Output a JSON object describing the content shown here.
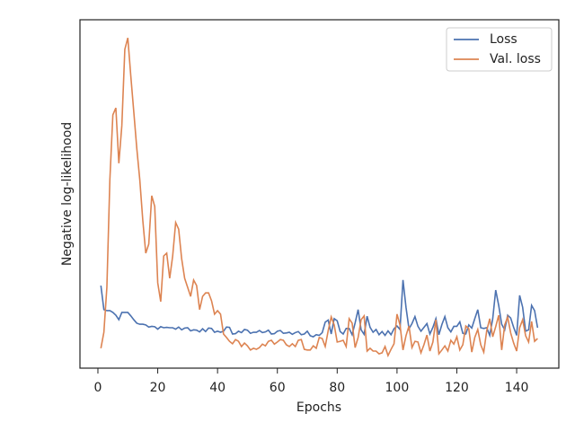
{
  "chart_data": {
    "type": "line",
    "xlabel": "Epochs",
    "ylabel": "Negative log-likelihood",
    "x": [
      1,
      2,
      3,
      4,
      5,
      6,
      7,
      8,
      9,
      10,
      11,
      12,
      13,
      14,
      15,
      16,
      17,
      18,
      19,
      20,
      21,
      22,
      23,
      24,
      25,
      26,
      27,
      28,
      29,
      30,
      31,
      32,
      33,
      34,
      35,
      36,
      37,
      38,
      39,
      40,
      41,
      42,
      43,
      44,
      45,
      46,
      47,
      48,
      49,
      50,
      51,
      52,
      53,
      54,
      55,
      56,
      57,
      58,
      59,
      60,
      61,
      62,
      63,
      64,
      65,
      66,
      67,
      68,
      69,
      70,
      71,
      72,
      73,
      74,
      75,
      76,
      77,
      78,
      79,
      80,
      81,
      82,
      83,
      84,
      85,
      86,
      87,
      88,
      89,
      90,
      91,
      92,
      93,
      94,
      95,
      96,
      97,
      98,
      99,
      100,
      101,
      102,
      103,
      104,
      105,
      106,
      107,
      108,
      109,
      110,
      111,
      112,
      113,
      114,
      115,
      116,
      117,
      118,
      119,
      120,
      121,
      122,
      123,
      124,
      125,
      126,
      127,
      128,
      129,
      130,
      131,
      132,
      133,
      134,
      135,
      136,
      137,
      138,
      139,
      140,
      141,
      142,
      143,
      144,
      145,
      146,
      147
    ],
    "series": [
      {
        "name": "Loss",
        "color": "#4c72b0",
        "values": [
          23.7,
          16.8,
          16.5,
          16.5,
          16.0,
          15.2,
          13.9,
          16.0,
          16.0,
          16.0,
          15.0,
          13.9,
          12.9,
          12.6,
          12.6,
          12.4,
          11.8,
          12.0,
          11.9,
          11.2,
          11.9,
          11.6,
          11.7,
          11.6,
          11.6,
          11.2,
          11.8,
          11.0,
          11.5,
          11.6,
          10.7,
          11.0,
          10.9,
          10.4,
          11.3,
          10.5,
          11.5,
          11.4,
          10.3,
          10.6,
          10.3,
          10.6,
          11.8,
          11.7,
          9.8,
          9.9,
          10.6,
          10.2,
          11.1,
          10.9,
          10.0,
          10.3,
          10.3,
          10.8,
          10.2,
          10.4,
          10.9,
          9.8,
          9.9,
          10.6,
          10.8,
          10.0,
          10.1,
          10.3,
          9.7,
          10.2,
          10.5,
          9.6,
          9.8,
          10.6,
          9.3,
          9.0,
          9.6,
          9.4,
          10.2,
          13.2,
          13.8,
          9.8,
          14.2,
          13.6,
          10.5,
          9.8,
          11.4,
          11.4,
          9.6,
          13.0,
          16.8,
          11.0,
          9.7,
          14.9,
          11.7,
          10.3,
          11.1,
          9.6,
          10.5,
          9.4,
          10.7,
          9.6,
          11.3,
          12.1,
          11.1,
          25.3,
          17.5,
          11.3,
          12.8,
          14.8,
          12.0,
          10.6,
          11.7,
          12.8,
          9.8,
          11.7,
          14.2,
          9.6,
          12.5,
          14.8,
          11.6,
          10.4,
          12.0,
          12.0,
          13.3,
          10.0,
          9.8,
          12.4,
          11.5,
          14.2,
          16.8,
          11.6,
          11.4,
          11.6,
          9.4,
          14.2,
          22.4,
          18.0,
          12.6,
          11.0,
          15.2,
          14.4,
          11.7,
          9.4,
          20.9,
          17.5,
          10.6,
          11.0,
          18.0,
          16.5,
          11.6
        ]
      },
      {
        "name": "Val. loss",
        "color": "#dd8452",
        "values": [
          5.7,
          10.3,
          23.2,
          54.1,
          72.7,
          74.7,
          58.8,
          69.6,
          91.5,
          94.8,
          83.8,
          73.5,
          63.1,
          54.1,
          42.5,
          33.0,
          35.6,
          49.5,
          46.4,
          24.5,
          19.1,
          32.2,
          33.0,
          25.8,
          32.2,
          41.8,
          39.9,
          31.4,
          25.8,
          23.2,
          20.6,
          25.3,
          23.7,
          16.8,
          20.6,
          21.6,
          21.6,
          19.3,
          15.5,
          16.5,
          15.5,
          9.8,
          8.8,
          7.7,
          7.0,
          8.2,
          7.7,
          6.2,
          7.2,
          6.4,
          5.2,
          5.7,
          5.4,
          5.9,
          6.9,
          6.4,
          7.7,
          8.0,
          6.9,
          7.5,
          8.2,
          8.0,
          6.7,
          6.2,
          7.0,
          6.2,
          8.0,
          8.2,
          5.4,
          5.2,
          5.2,
          6.4,
          5.7,
          8.8,
          8.5,
          6.2,
          10.8,
          14.7,
          12.4,
          7.5,
          7.7,
          8.0,
          6.2,
          14.2,
          12.9,
          5.9,
          8.8,
          13.9,
          15.0,
          4.9,
          5.7,
          4.9,
          4.9,
          4.1,
          4.4,
          6.2,
          3.6,
          5.4,
          7.0,
          15.5,
          12.4,
          5.2,
          9.3,
          12.1,
          5.9,
          7.7,
          7.5,
          4.4,
          6.7,
          9.5,
          4.9,
          7.5,
          13.9,
          4.1,
          5.2,
          6.4,
          4.9,
          8.0,
          6.9,
          9.0,
          5.2,
          6.7,
          12.1,
          11.3,
          4.6,
          8.8,
          11.1,
          6.7,
          4.6,
          10.8,
          14.2,
          9.0,
          11.9,
          15.2,
          5.2,
          12.4,
          14.7,
          10.1,
          7.2,
          4.9,
          11.6,
          13.9,
          9.3,
          7.5,
          13.4,
          7.7,
          8.5
        ]
      }
    ],
    "xlim": [
      -6,
      154.1
    ],
    "xticks": [
      0,
      20,
      40,
      60,
      80,
      100,
      120,
      140
    ],
    "ylim": [
      0,
      100
    ],
    "legend": "upper right"
  }
}
